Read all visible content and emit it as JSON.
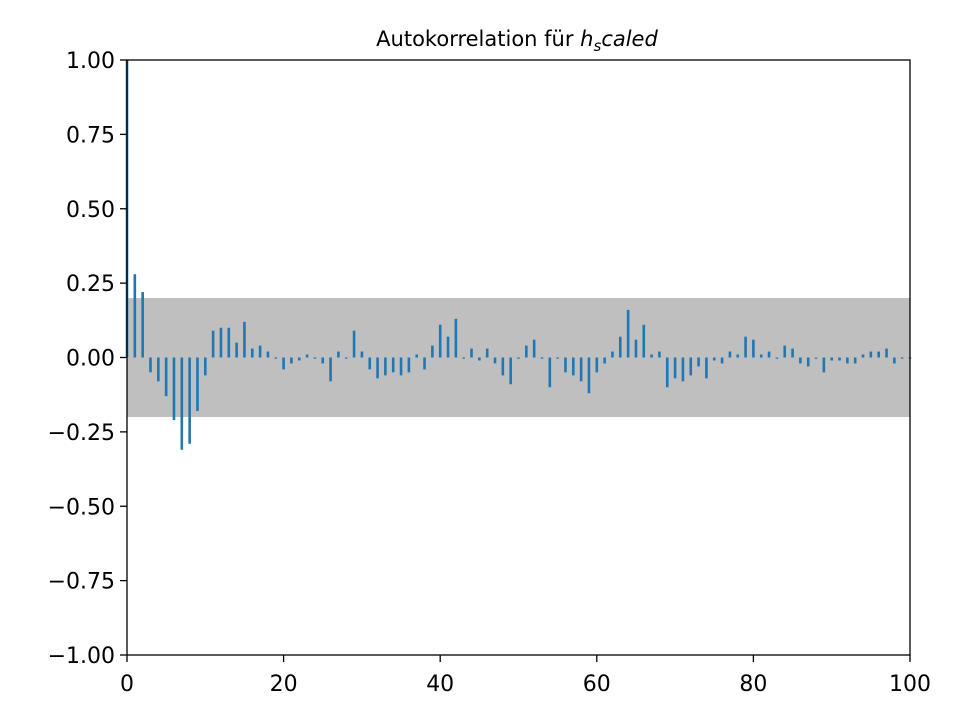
{
  "chart_data": {
    "type": "bar",
    "title": {
      "prefix": "Autokorrelation für ",
      "var_main": "h",
      "var_sub": "s",
      "var_rest": "caled"
    },
    "xlabel": "",
    "ylabel": "",
    "xlim": [
      0,
      100
    ],
    "ylim": [
      -1.0,
      1.0
    ],
    "x_ticks": [
      0,
      20,
      40,
      60,
      80,
      100
    ],
    "x_tick_labels": [
      "0",
      "20",
      "40",
      "60",
      "80",
      "100"
    ],
    "y_ticks": [
      1.0,
      0.75,
      0.5,
      0.25,
      0.0,
      -0.25,
      -0.5,
      -0.75,
      -1.0
    ],
    "y_tick_labels": [
      "1.00",
      "0.75",
      "0.50",
      "0.25",
      "0.00",
      "−0.25",
      "−0.50",
      "−0.75",
      "−1.00"
    ],
    "confidence_band": [
      -0.2,
      0.2
    ],
    "grid": false,
    "lags": [
      0,
      1,
      2,
      3,
      4,
      5,
      6,
      7,
      8,
      9,
      10,
      11,
      12,
      13,
      14,
      15,
      16,
      17,
      18,
      19,
      20,
      21,
      22,
      23,
      24,
      25,
      26,
      27,
      28,
      29,
      30,
      31,
      32,
      33,
      34,
      35,
      36,
      37,
      38,
      39,
      40,
      41,
      42,
      43,
      44,
      45,
      46,
      47,
      48,
      49,
      50,
      51,
      52,
      53,
      54,
      55,
      56,
      57,
      58,
      59,
      60,
      61,
      62,
      63,
      64,
      65,
      66,
      67,
      68,
      69,
      70,
      71,
      72,
      73,
      74,
      75,
      76,
      77,
      78,
      79,
      80,
      81,
      82,
      83,
      84,
      85,
      86,
      87,
      88,
      89,
      90,
      91,
      92,
      93,
      94,
      95,
      96,
      97,
      98,
      99,
      100
    ],
    "values": [
      1.0,
      0.28,
      0.22,
      -0.05,
      -0.08,
      -0.13,
      -0.21,
      -0.31,
      -0.29,
      -0.18,
      -0.06,
      0.09,
      0.1,
      0.1,
      0.05,
      0.12,
      0.03,
      0.04,
      0.02,
      0.0,
      -0.04,
      -0.02,
      -0.01,
      0.01,
      0.0,
      -0.02,
      -0.08,
      0.02,
      0.0,
      0.09,
      0.02,
      -0.04,
      -0.07,
      -0.06,
      -0.05,
      -0.06,
      -0.05,
      0.01,
      -0.04,
      0.04,
      0.11,
      0.07,
      0.13,
      0.0,
      0.03,
      -0.01,
      0.03,
      -0.02,
      -0.06,
      -0.09,
      0.0,
      0.04,
      0.06,
      0.0,
      -0.1,
      0.0,
      -0.05,
      -0.06,
      -0.08,
      -0.12,
      -0.05,
      -0.02,
      0.02,
      0.07,
      0.16,
      0.06,
      0.11,
      0.01,
      0.02,
      -0.1,
      -0.07,
      -0.08,
      -0.06,
      -0.03,
      -0.07,
      -0.01,
      -0.02,
      0.02,
      0.01,
      0.07,
      0.06,
      0.01,
      0.02,
      0.0,
      0.04,
      0.03,
      -0.02,
      -0.03,
      0.0,
      -0.05,
      -0.01,
      -0.01,
      -0.02,
      -0.02,
      0.01,
      0.02,
      0.02,
      0.03,
      -0.02,
      0.0,
      0.0
    ],
    "colors": {
      "bar": "#1f77b4",
      "band": "#bfbfbf",
      "axis": "#000000"
    }
  }
}
